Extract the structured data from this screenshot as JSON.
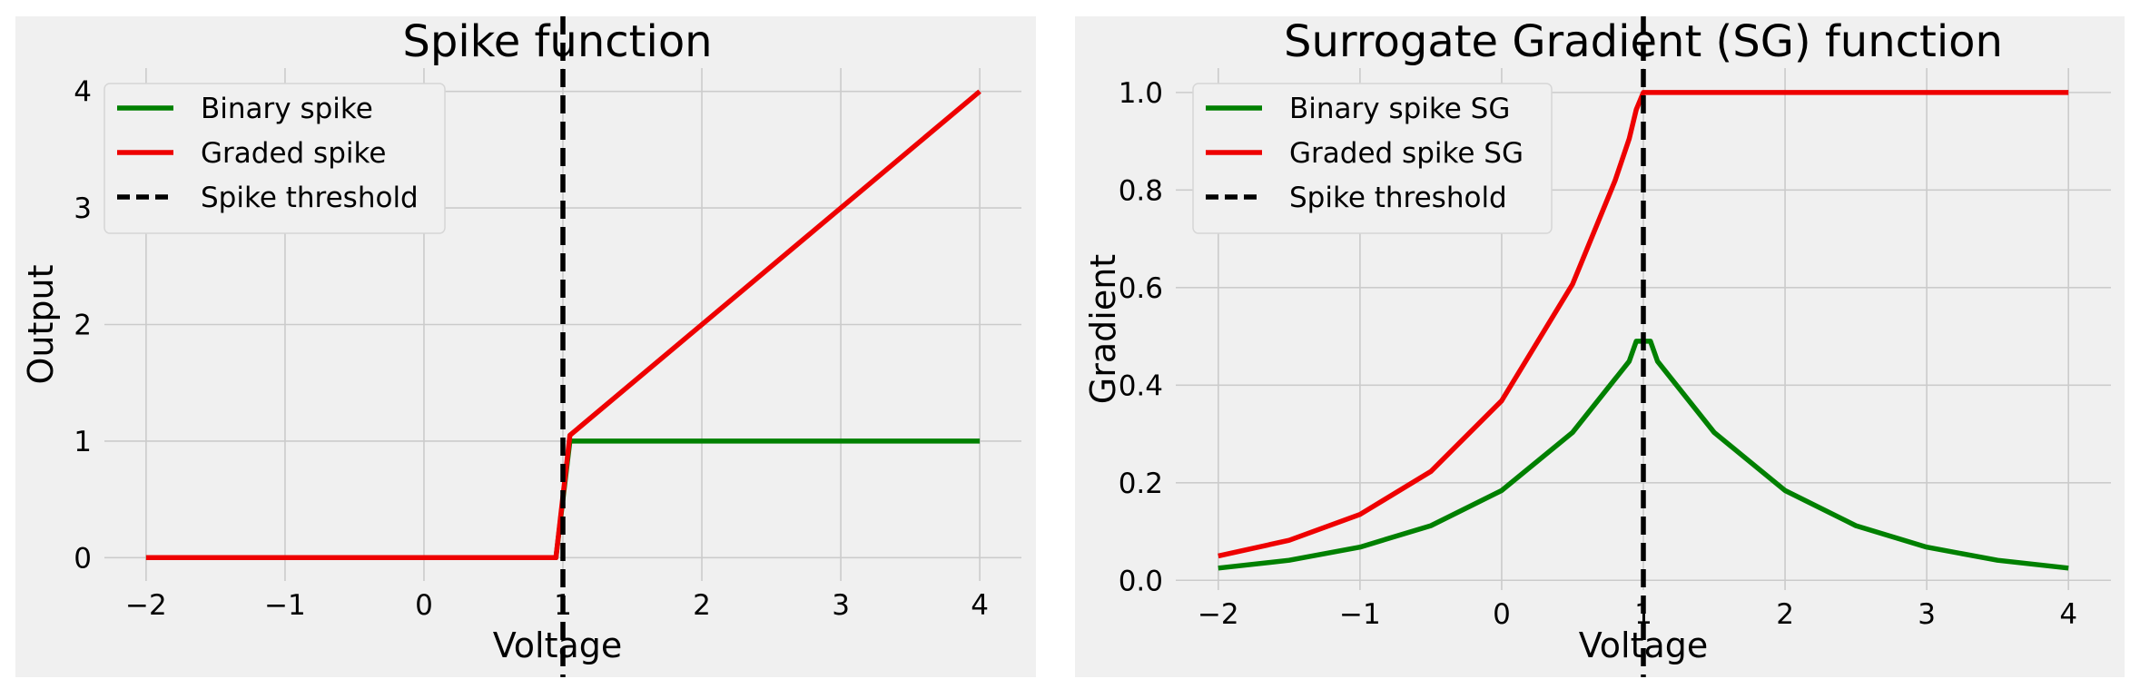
{
  "chart_data": [
    {
      "type": "line",
      "title": "Spike function",
      "xlabel": "Voltage",
      "ylabel": "Output",
      "xlim": [
        -2.3,
        4.3
      ],
      "ylim": [
        -0.2,
        4.2
      ],
      "xticks": [
        -2,
        -1,
        0,
        1,
        2,
        3,
        4
      ],
      "xtick_labels": [
        "−2",
        "−1",
        "0",
        "1",
        "2",
        "3",
        "4"
      ],
      "yticks": [
        0,
        1,
        2,
        3,
        4
      ],
      "ytick_labels": [
        "0",
        "1",
        "2",
        "3",
        "4"
      ],
      "grid": true,
      "legend_position": "top-left",
      "series": [
        {
          "name": "Binary spike",
          "color": "#008000",
          "x": [
            -2,
            0.95,
            1.05,
            4
          ],
          "y": [
            0,
            0,
            1,
            1
          ]
        },
        {
          "name": "Graded spike",
          "color": "#ee0000",
          "x": [
            -2,
            0.95,
            1.05,
            4
          ],
          "y": [
            0,
            0,
            1.05,
            4
          ]
        }
      ],
      "threshold": {
        "name": "Spike threshold",
        "x": 1,
        "color": "#000000",
        "style": "dashed"
      }
    },
    {
      "type": "line",
      "title": "Surrogate Gradient (SG) function",
      "xlabel": "Voltage",
      "ylabel": "Gradient",
      "xlim": [
        -2.3,
        4.3
      ],
      "ylim": [
        -0.02,
        1.05
      ],
      "xticks": [
        -2,
        -1,
        0,
        1,
        2,
        3,
        4
      ],
      "xtick_labels": [
        "−2",
        "−1",
        "0",
        "1",
        "2",
        "3",
        "4"
      ],
      "yticks": [
        0,
        0.2,
        0.4,
        0.6,
        0.8,
        1.0
      ],
      "ytick_labels": [
        "0.0",
        "0.2",
        "0.4",
        "0.6",
        "0.8",
        "1.0"
      ],
      "grid": true,
      "legend_position": "top-left",
      "series": [
        {
          "name": "Binary spike SG",
          "color": "#008000",
          "x": [
            -2,
            -1.5,
            -1,
            -0.5,
            0,
            0.5,
            0.9,
            0.95,
            1.05,
            1.1,
            1.5,
            2,
            2.5,
            3,
            3.5,
            4
          ],
          "y": [
            0.025,
            0.041,
            0.068,
            0.112,
            0.184,
            0.303,
            0.449,
            0.49,
            0.49,
            0.449,
            0.303,
            0.184,
            0.112,
            0.068,
            0.041,
            0.025
          ]
        },
        {
          "name": "Graded spike SG",
          "color": "#ee0000",
          "x": [
            -2,
            -1.5,
            -1,
            -0.5,
            0,
            0.5,
            0.8,
            0.9,
            0.95,
            1.0,
            1.05,
            4
          ],
          "y": [
            0.05,
            0.082,
            0.135,
            0.223,
            0.368,
            0.607,
            0.819,
            0.905,
            0.965,
            1.0,
            1.0,
            1.0
          ]
        }
      ],
      "threshold": {
        "name": "Spike threshold",
        "x": 1,
        "color": "#000000",
        "style": "dashed"
      }
    }
  ]
}
